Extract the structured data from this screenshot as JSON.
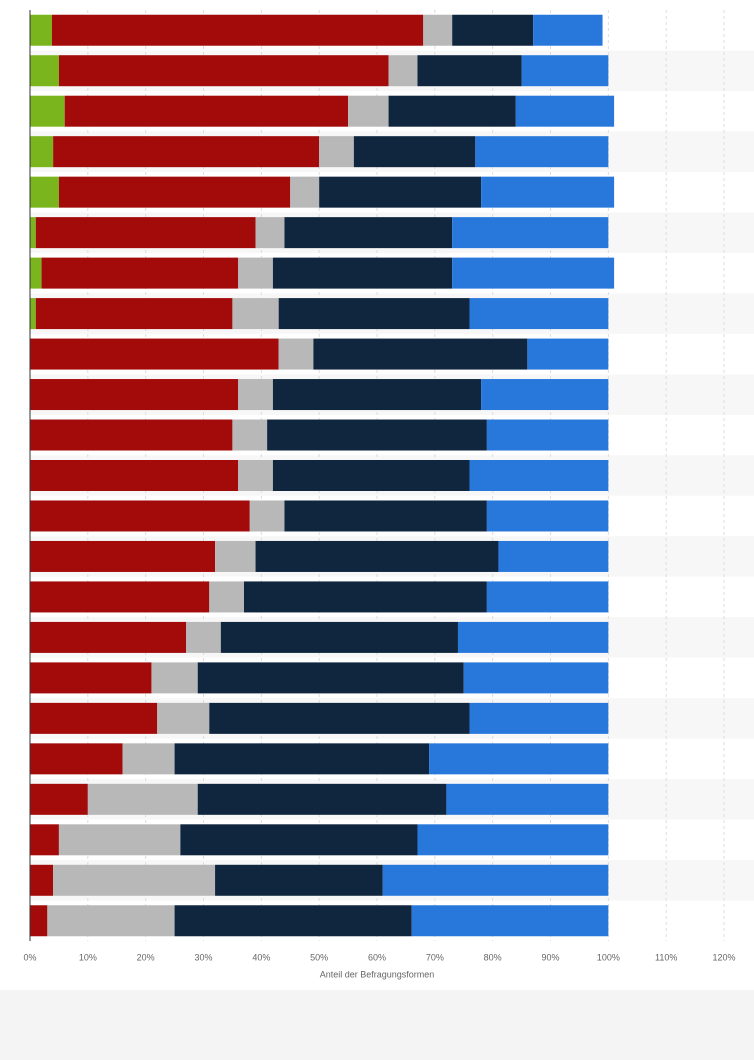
{
  "chart_data": {
    "type": "stacked-barh",
    "x_label": "Anteil der Befragungsformen",
    "categories": [
      null,
      null,
      null,
      null,
      null,
      null,
      null,
      null,
      null,
      null,
      null,
      null,
      null,
      null,
      null,
      null,
      null,
      null,
      null,
      null,
      null,
      null,
      null
    ],
    "series": [
      {
        "color": "#7ab51d",
        "values": [
          3.8,
          5,
          6,
          4,
          5,
          1,
          2,
          1,
          0,
          0,
          0,
          0,
          0,
          0,
          0,
          0,
          0,
          0,
          0,
          0,
          0,
          0,
          0
        ]
      },
      {
        "color": "#a30a0a",
        "values": [
          64.2,
          57,
          49,
          46,
          40,
          38,
          34,
          34,
          43,
          36,
          35,
          36,
          38,
          32,
          31,
          27,
          21,
          22,
          16,
          10,
          5,
          4,
          3
        ]
      },
      {
        "color": "#b8b8b8",
        "values": [
          5,
          5,
          7,
          6,
          5,
          5,
          6,
          8,
          6,
          6,
          6,
          6,
          6,
          7,
          6,
          6,
          8,
          9,
          9,
          19,
          21,
          28,
          22
        ]
      },
      {
        "color": "#10263f",
        "values": [
          14,
          18,
          22,
          21,
          28,
          29,
          31,
          33,
          37,
          36,
          38,
          34,
          35,
          42,
          42,
          41,
          46,
          45,
          44,
          43,
          41,
          29,
          41
        ]
      },
      {
        "color": "#2878dc",
        "values": [
          12,
          15,
          17,
          23,
          23,
          27,
          28,
          24,
          14,
          22,
          21,
          24,
          21,
          19,
          21,
          26,
          25,
          24,
          31,
          28,
          33,
          39,
          34
        ]
      }
    ],
    "xlim": [
      0,
      120
    ],
    "xticks": [
      {
        "value": 0,
        "label": "0%"
      },
      {
        "value": 10,
        "label": "10%"
      },
      {
        "value": 20,
        "label": "20%"
      },
      {
        "value": 30,
        "label": "30%"
      },
      {
        "value": 40,
        "label": "40%"
      },
      {
        "value": 50,
        "label": "50%"
      },
      {
        "value": 60,
        "label": "60%"
      },
      {
        "value": 70,
        "label": "70%"
      },
      {
        "value": 80,
        "label": "80%"
      },
      {
        "value": 90,
        "label": "90%"
      },
      {
        "value": 100,
        "label": "100%"
      },
      {
        "value": 110,
        "label": "110%"
      },
      {
        "value": 120,
        "label": "120%"
      }
    ],
    "grid": true
  }
}
